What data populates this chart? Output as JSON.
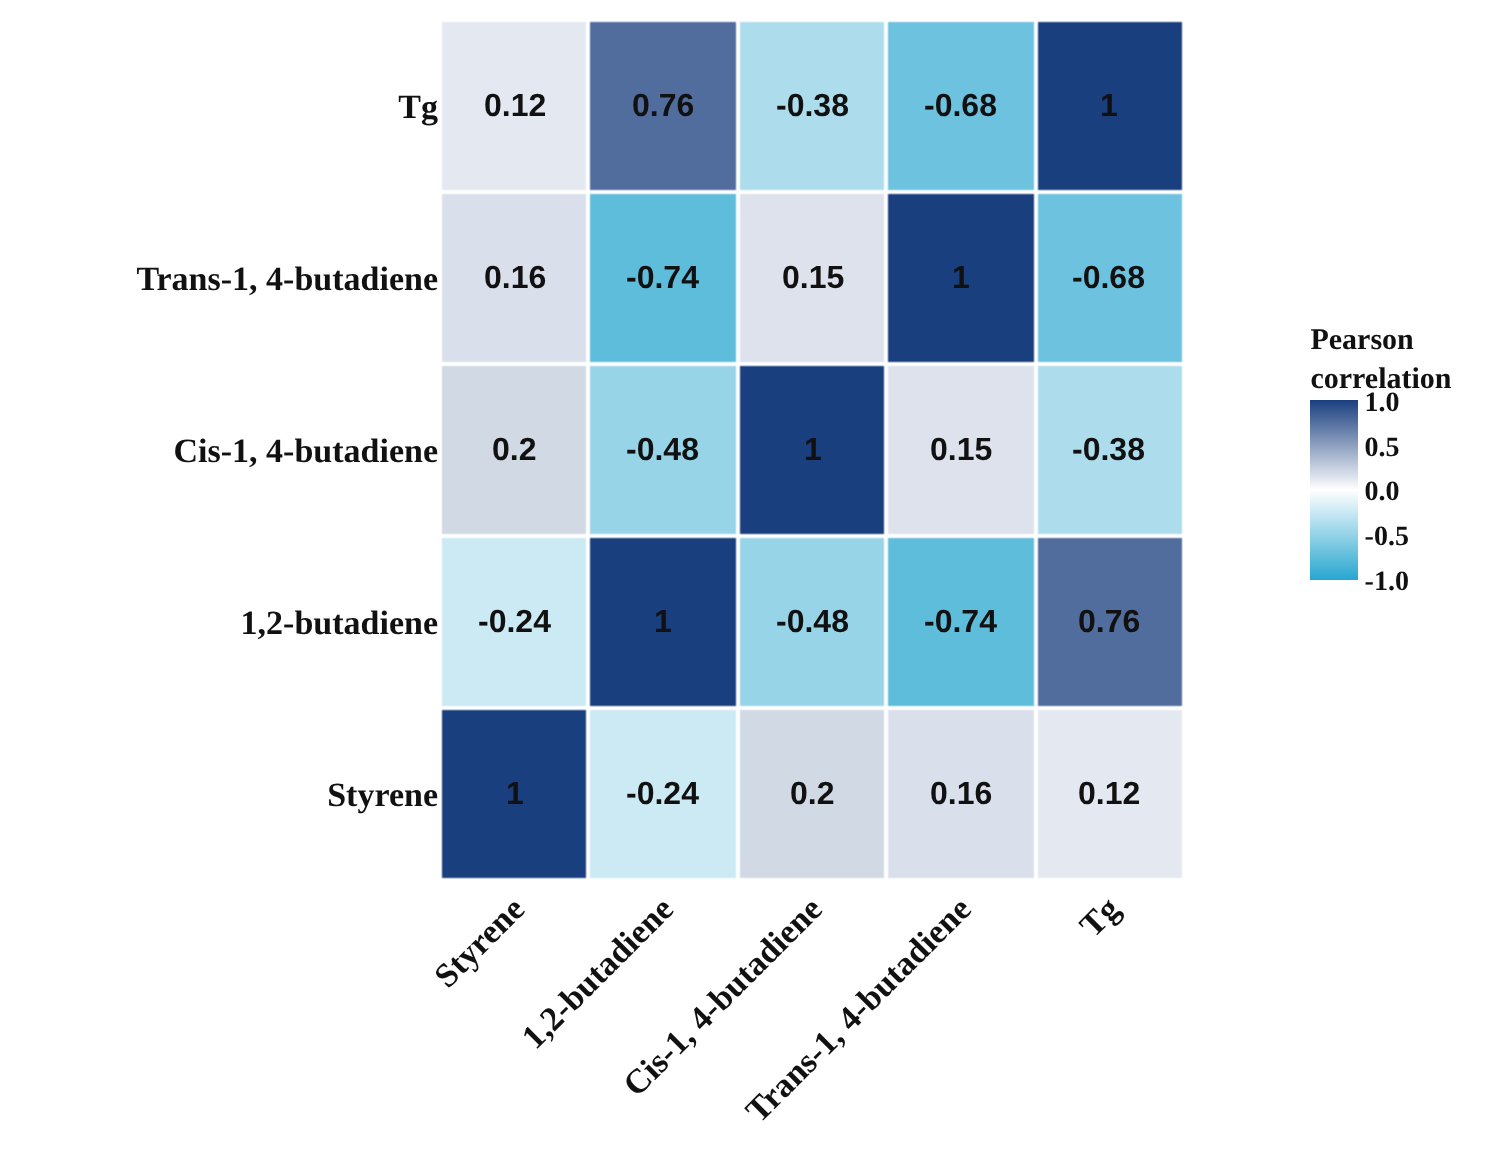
{
  "chart_data": {
    "type": "heatmap",
    "clabel": "Pearson correlation",
    "categories": [
      "Styrene",
      "1,2-butadiene",
      "Cis-1, 4-butadiene",
      "Trans-1, 4-butadiene",
      "Tg"
    ],
    "y_categories": [
      "Tg",
      "Trans-1, 4-butadiene",
      "Cis-1, 4-butadiene",
      "1,2-butadiene",
      "Styrene"
    ],
    "cells": [
      [
        0.12,
        0.76,
        -0.38,
        -0.68,
        1
      ],
      [
        0.16,
        -0.74,
        0.15,
        1,
        -0.68
      ],
      [
        0.2,
        -0.48,
        1,
        0.15,
        -0.38
      ],
      [
        -0.24,
        1,
        -0.48,
        -0.74,
        0.76
      ],
      [
        1,
        -0.24,
        0.2,
        0.16,
        0.12
      ]
    ],
    "clim": [
      -1,
      1
    ],
    "cticks": [
      {
        "value": 1,
        "label": "1.0"
      },
      {
        "value": 0.5,
        "label": "0.5"
      },
      {
        "value": 0,
        "label": "0.0"
      },
      {
        "value": -0.5,
        "label": "-0.5"
      },
      {
        "value": -1,
        "label": "-1.0"
      }
    ],
    "data_labels": true
  }
}
